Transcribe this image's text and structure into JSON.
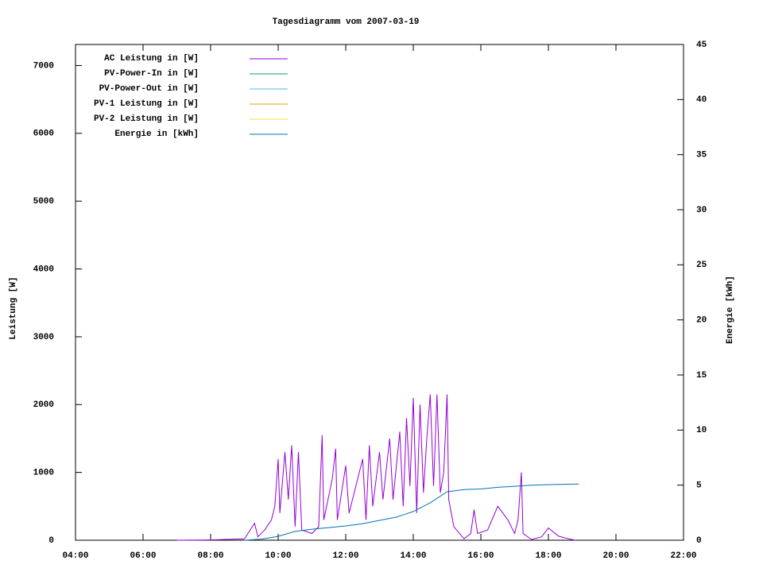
{
  "chart_data": {
    "type": "line",
    "title": "Tagesdiagramm vom 2007-03-19",
    "ylabel": "Leistung [W]",
    "y2label": "Energie [kWh]",
    "xlim": [
      4,
      22
    ],
    "xticks": [
      {
        "value": 4,
        "label": "04:00"
      },
      {
        "value": 6,
        "label": "06:00"
      },
      {
        "value": 8,
        "label": "08:00"
      },
      {
        "value": 10,
        "label": "10:00"
      },
      {
        "value": 12,
        "label": "12:00"
      },
      {
        "value": 14,
        "label": "14:00"
      },
      {
        "value": 16,
        "label": "16:00"
      },
      {
        "value": 18,
        "label": "18:00"
      },
      {
        "value": 20,
        "label": "20:00"
      },
      {
        "value": 22,
        "label": "22:00"
      }
    ],
    "ylim": [
      0,
      7310
    ],
    "yticks": [
      0,
      1000,
      2000,
      3000,
      4000,
      5000,
      6000,
      7000
    ],
    "y2lim": [
      0,
      45
    ],
    "y2ticks": [
      0,
      5,
      10,
      15,
      20,
      25,
      30,
      35,
      40,
      45
    ],
    "series": [
      {
        "name": "AC Leistung in [W]",
        "color": "#9400d3",
        "x": [
          7.0,
          8.0,
          9.0,
          9.3,
          9.4,
          9.6,
          9.8,
          9.9,
          10.0,
          10.05,
          10.2,
          10.3,
          10.4,
          10.5,
          10.6,
          10.7,
          11.0,
          11.2,
          11.3,
          11.35,
          11.6,
          11.7,
          11.75,
          12.0,
          12.1,
          12.3,
          12.5,
          12.6,
          12.7,
          12.8,
          13.0,
          13.1,
          13.3,
          13.4,
          13.6,
          13.7,
          13.8,
          13.9,
          14.0,
          14.1,
          14.2,
          14.3,
          14.4,
          14.5,
          14.6,
          14.7,
          14.8,
          14.9,
          15.0,
          15.05,
          15.2,
          15.5,
          15.7,
          15.8,
          15.9,
          16.2,
          16.5,
          16.8,
          17.0,
          17.1,
          17.2,
          17.25,
          17.5,
          17.8,
          18.0,
          18.3,
          18.6,
          18.8
        ],
        "values": [
          0,
          5,
          20,
          250,
          50,
          150,
          300,
          500,
          1200,
          400,
          1300,
          600,
          1400,
          200,
          1300,
          150,
          100,
          200,
          1550,
          300,
          900,
          1350,
          300,
          1100,
          400,
          800,
          1200,
          300,
          1400,
          500,
          1300,
          600,
          1500,
          600,
          1600,
          500,
          1800,
          800,
          2100,
          400,
          2000,
          700,
          1500,
          2150,
          800,
          2150,
          700,
          1000,
          2150,
          600,
          200,
          20,
          100,
          450,
          100,
          150,
          500,
          300,
          100,
          300,
          1000,
          100,
          10,
          50,
          180,
          60,
          20,
          0
        ]
      },
      {
        "name": "PV-Power-In in [W]",
        "color": "#009e73",
        "x": [],
        "values": []
      },
      {
        "name": "PV-Power-Out in [W]",
        "color": "#56b4e9",
        "x": [],
        "values": []
      },
      {
        "name": "PV-1 Leistung in [W]",
        "color": "#e69f00",
        "x": [],
        "values": []
      },
      {
        "name": "PV-2 Leistung in [W]",
        "color": "#f0e442",
        "x": [],
        "values": []
      },
      {
        "name": "Energie in [kWh]",
        "color": "#0072b2",
        "axis": "y2",
        "x": [
          9.0,
          9.5,
          10.0,
          10.5,
          11.0,
          11.5,
          12.0,
          12.5,
          13.0,
          13.5,
          14.0,
          14.5,
          15.0,
          15.5,
          16.0,
          16.5,
          17.0,
          17.5,
          18.0,
          18.9
        ],
        "values": [
          0,
          0.1,
          0.35,
          0.8,
          1.0,
          1.15,
          1.3,
          1.5,
          1.8,
          2.1,
          2.6,
          3.4,
          4.4,
          4.6,
          4.65,
          4.8,
          4.9,
          5.0,
          5.05,
          5.1
        ]
      }
    ]
  }
}
